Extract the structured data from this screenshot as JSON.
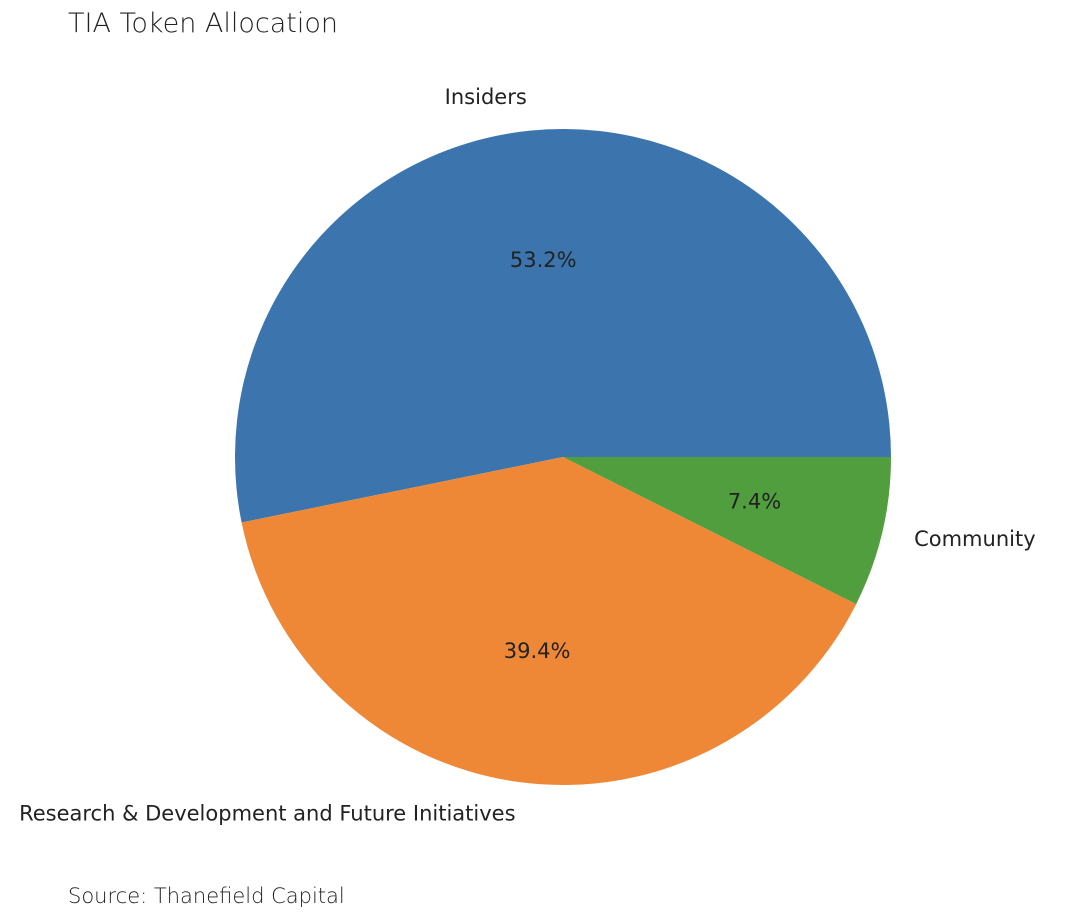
{
  "chart_data": {
    "type": "pie",
    "title": "TIA Token Allocation",
    "categories": [
      "Insiders",
      "Research & Development and Future Initiatives",
      "Community"
    ],
    "values": [
      53.2,
      39.4,
      7.4
    ],
    "value_labels": [
      "53.2%",
      "39.4%",
      "7.4%"
    ],
    "colors": [
      "#3c74ad",
      "#ee8836",
      "#519e3e"
    ],
    "start_angle_deg": 0,
    "direction": "counterclockwise",
    "legend": "none"
  },
  "source": "Source: Thanefield Capital"
}
